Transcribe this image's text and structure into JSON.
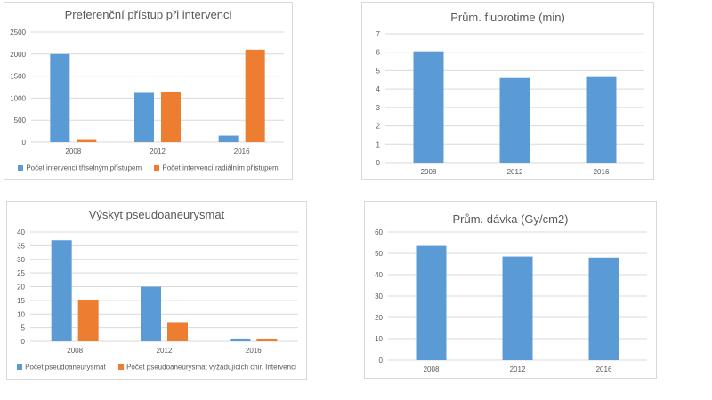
{
  "chart_data": [
    {
      "type": "bar",
      "title": "Preferenční přístup při intervenci",
      "categories": [
        "2008",
        "2012",
        "2016"
      ],
      "series": [
        {
          "name": "Počet intervencí tříselným přístupem",
          "values": [
            2000,
            1120,
            150
          ],
          "color": "#5b9bd5"
        },
        {
          "name": "Počet intervencí radiálním přístupem",
          "values": [
            70,
            1150,
            2100
          ],
          "color": "#ed7d31"
        }
      ],
      "ylim": [
        0,
        2500
      ],
      "yticks": [
        "0",
        "500",
        "1000",
        "1500",
        "2000",
        "2500"
      ],
      "grid": true,
      "legend": "bottom"
    },
    {
      "type": "bar",
      "title": "Prům. fluorotime (min)",
      "categories": [
        "2008",
        "2012",
        "2016"
      ],
      "series": [
        {
          "values": [
            6.05,
            4.6,
            4.65
          ],
          "color": "#5b9bd5"
        }
      ],
      "ylim": [
        0,
        7
      ],
      "yticks": [
        "0",
        "1",
        "2",
        "3",
        "4",
        "5",
        "6",
        "7"
      ],
      "grid": true
    },
    {
      "type": "bar",
      "title": "Výskyt pseudoaneurysmat",
      "categories": [
        "2008",
        "2012",
        "2016"
      ],
      "series": [
        {
          "name": "Počet pseudoaneurysmat",
          "values": [
            37,
            20,
            1
          ],
          "color": "#5b9bd5"
        },
        {
          "name": "Počet pseudoaneurysmat vyžadujících chir. Intervenci",
          "values": [
            15,
            7,
            1
          ],
          "color": "#ed7d31"
        }
      ],
      "ylim": [
        0,
        40
      ],
      "yticks": [
        "0",
        "5",
        "10",
        "15",
        "20",
        "25",
        "30",
        "35",
        "40"
      ],
      "grid": true,
      "legend": "bottom"
    },
    {
      "type": "bar",
      "title": "Prům. dávka (Gy/cm2)",
      "categories": [
        "2008",
        "2012",
        "2016"
      ],
      "series": [
        {
          "values": [
            53.5,
            48.5,
            48
          ],
          "color": "#5b9bd5"
        }
      ],
      "ylim": [
        0,
        60
      ],
      "yticks": [
        "0",
        "10",
        "20",
        "30",
        "40",
        "50",
        "60"
      ],
      "grid": true
    }
  ]
}
